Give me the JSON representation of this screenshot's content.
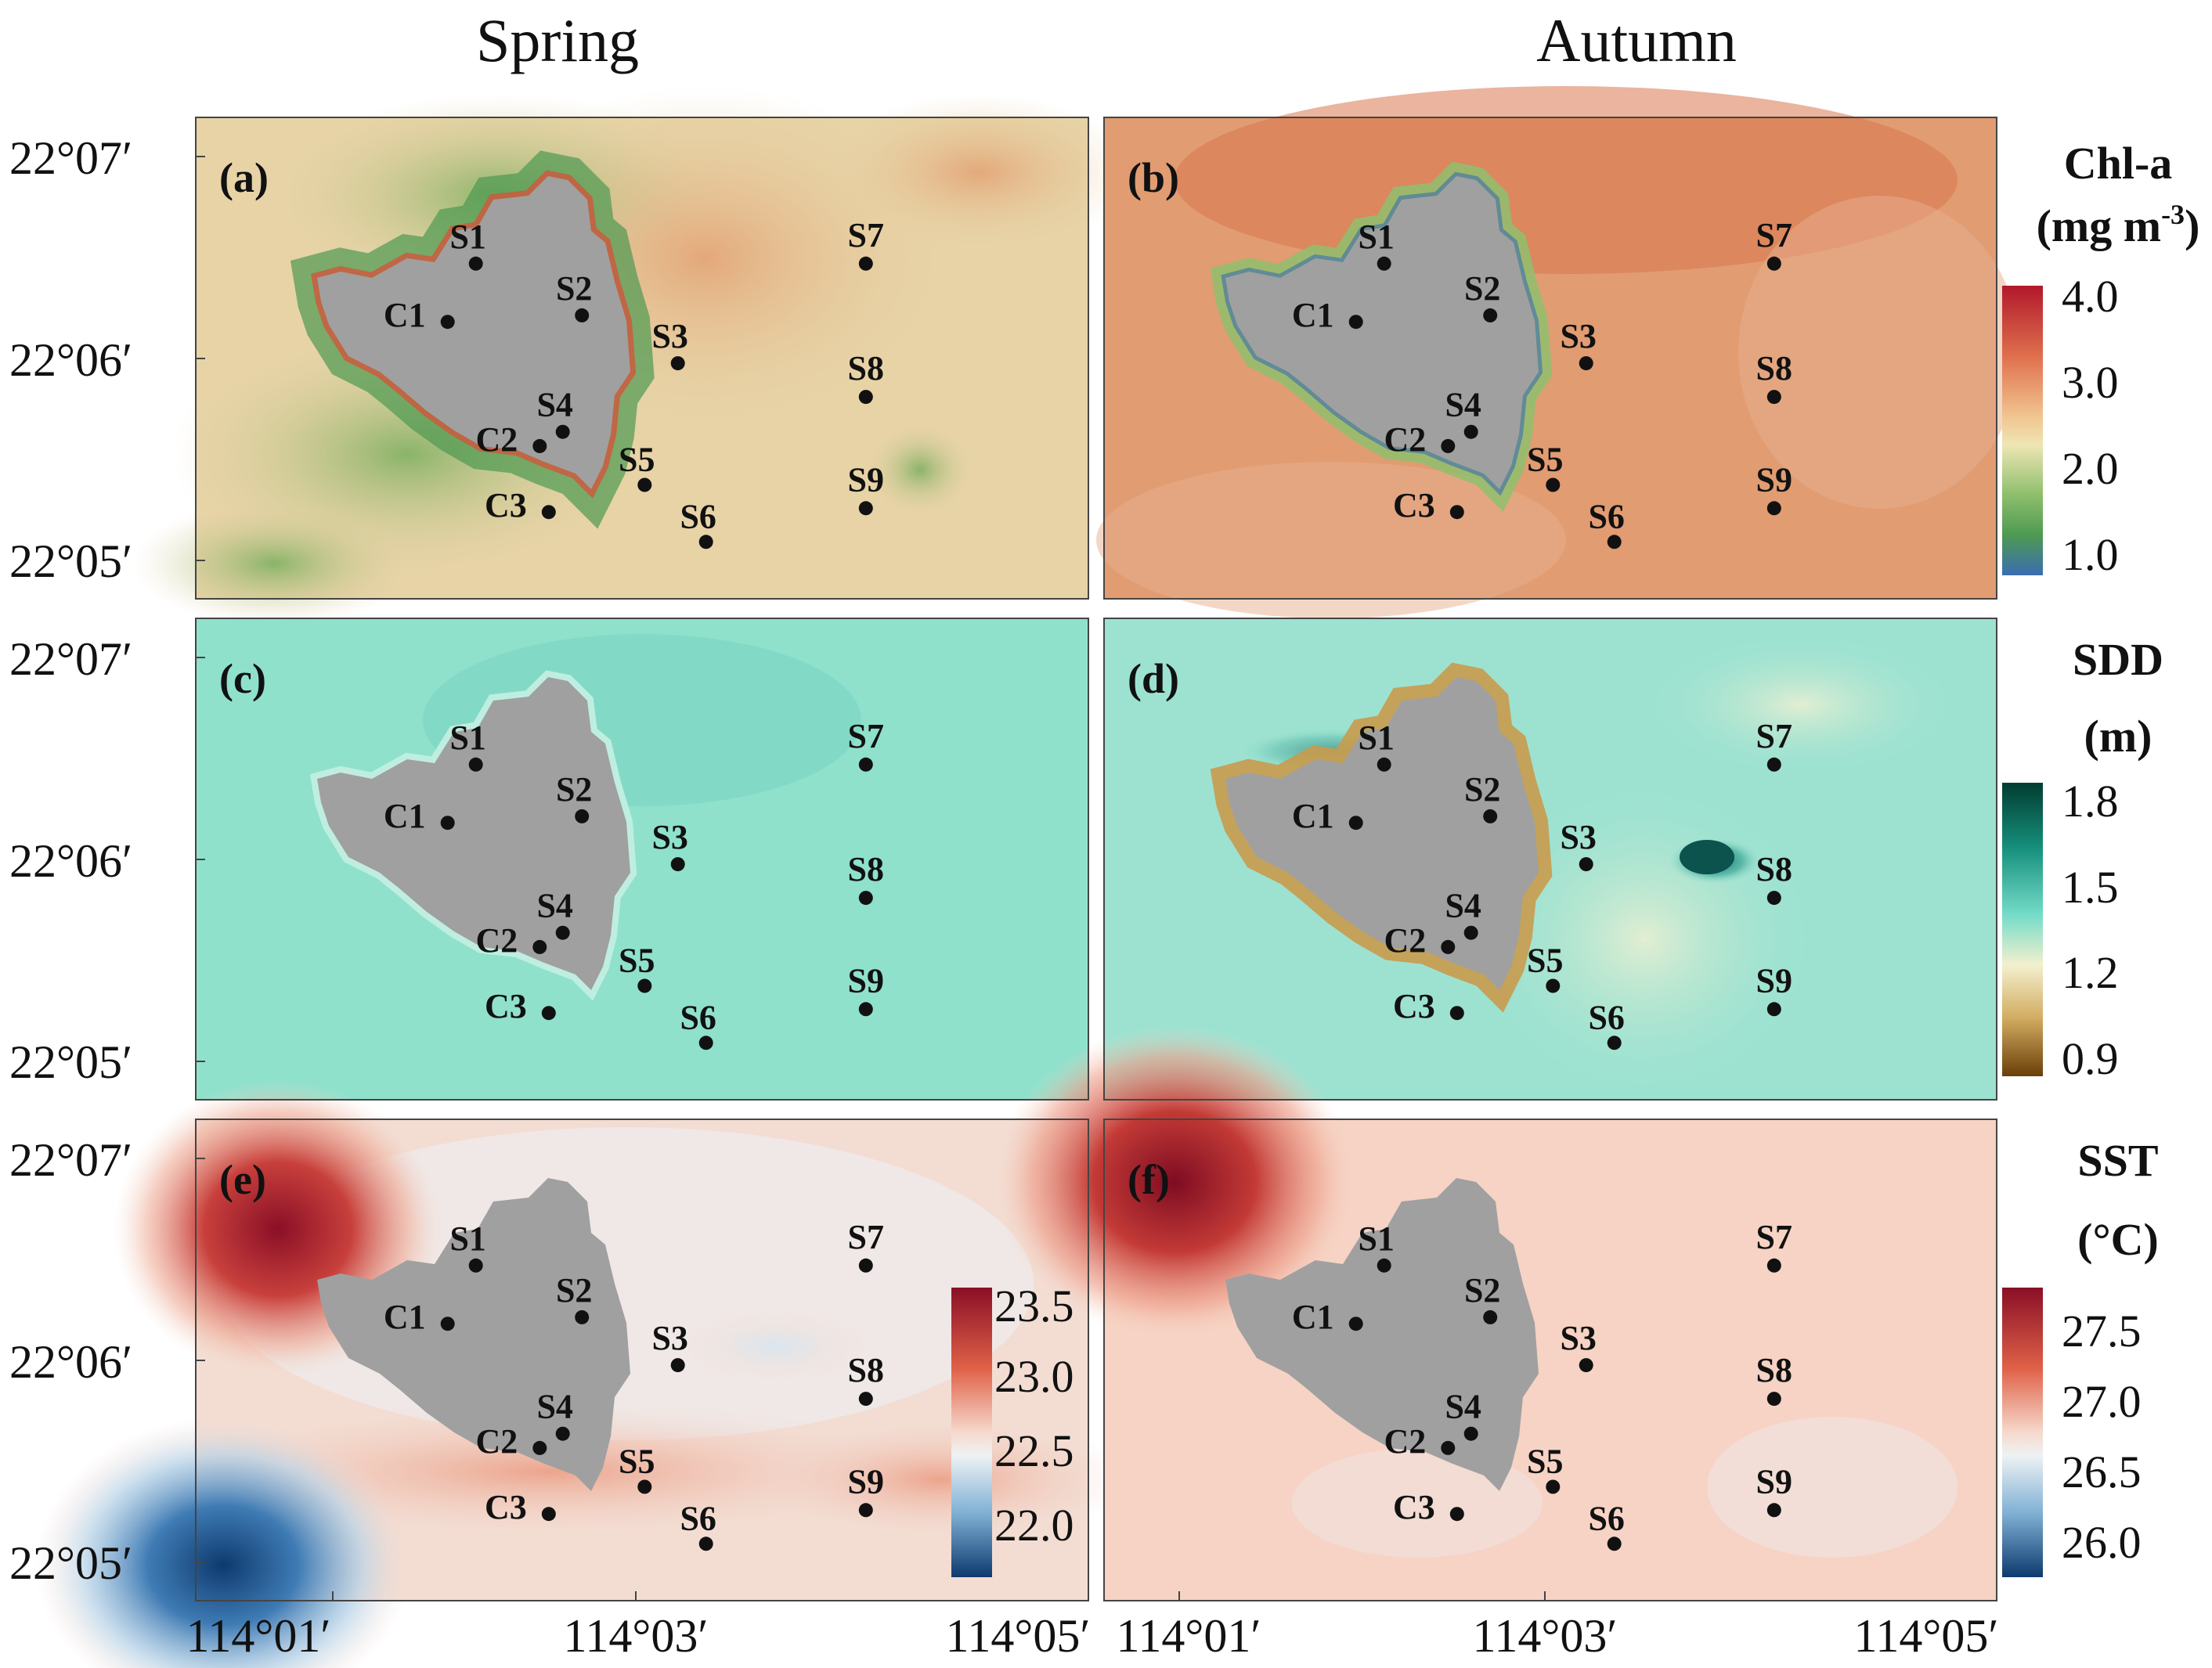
{
  "column_titles": [
    "Spring",
    "Autumn"
  ],
  "lat_ticks": [
    "22°07′",
    "22°06′",
    "22°05′"
  ],
  "lon_ticks": [
    "114°01′",
    "114°03′",
    "114°05′"
  ],
  "stations": [
    {
      "name": "S1",
      "lon": 114.0355,
      "lat": 22.1115
    },
    {
      "name": "S2",
      "lon": 114.0438,
      "lat": 22.1075
    },
    {
      "name": "S3",
      "lon": 114.0513,
      "lat": 22.1038
    },
    {
      "name": "S4",
      "lon": 114.0423,
      "lat": 22.0985
    },
    {
      "name": "S5",
      "lon": 114.0487,
      "lat": 22.0944
    },
    {
      "name": "S6",
      "lon": 114.0535,
      "lat": 22.09
    },
    {
      "name": "S7",
      "lon": 114.066,
      "lat": 22.1115
    },
    {
      "name": "S8",
      "lon": 114.066,
      "lat": 22.1012
    },
    {
      "name": "S9",
      "lon": 114.066,
      "lat": 22.0926
    },
    {
      "name": "C1",
      "lon": 114.0333,
      "lat": 22.107
    },
    {
      "name": "C2",
      "lon": 114.0405,
      "lat": 22.0974
    },
    {
      "name": "C3",
      "lon": 114.0412,
      "lat": 22.0923
    }
  ],
  "panels": [
    {
      "label": "(a)",
      "variable": "Chl-a",
      "season": "Spring"
    },
    {
      "label": "(b)",
      "variable": "Chl-a",
      "season": "Autumn"
    },
    {
      "label": "(c)",
      "variable": "SDD",
      "season": "Spring"
    },
    {
      "label": "(d)",
      "variable": "SDD",
      "season": "Autumn"
    },
    {
      "label": "(e)",
      "variable": "SST",
      "season": "Spring"
    },
    {
      "label": "(f)",
      "variable": "SST",
      "season": "Autumn"
    }
  ],
  "colorbars": {
    "chla": {
      "title1": "Chl-a",
      "title2": "(mg m",
      "title2_sup": "-3",
      "title2_end": ")",
      "ticks": [
        "4.0",
        "3.0",
        "2.0",
        "1.0"
      ]
    },
    "sdd": {
      "title1": "SDD",
      "title2": "(m)",
      "ticks": [
        "1.8",
        "1.5",
        "1.2",
        "0.9"
      ]
    },
    "sst_spring": {
      "ticks": [
        "23.5",
        "23.0",
        "22.5",
        "22.0"
      ]
    },
    "sst_autumn": {
      "title1": "SST",
      "title2": "(°C)",
      "ticks": [
        "27.5",
        "27.0",
        "26.5",
        "26.0"
      ]
    }
  },
  "colors": {
    "land": "#a0a0a0",
    "chla_spring_bg": "#e7d3a6",
    "chla_autumn_bg": "#e19c72",
    "sdd_spring_bg": "#8fe1cc",
    "sdd_autumn_bg": "#9de2d1",
    "sst_spring_bg": "#f3ddd3",
    "sst_autumn_bg": "#f6d3c4",
    "station_dot": "#111111"
  }
}
